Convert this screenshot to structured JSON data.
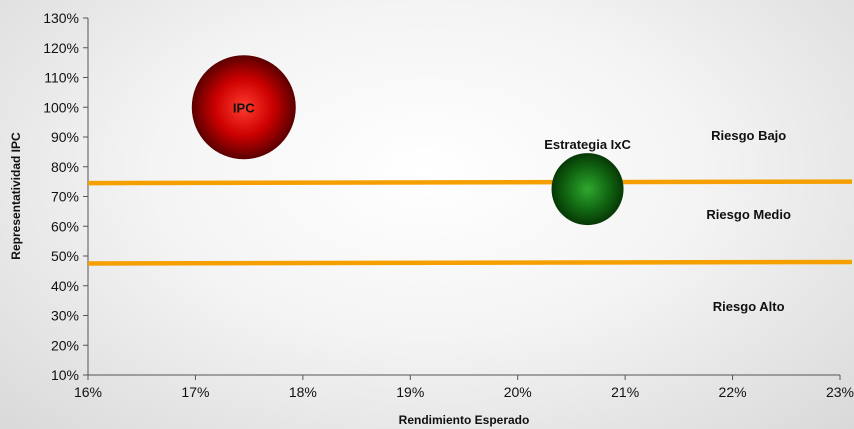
{
  "chart_data": {
    "type": "scatter",
    "xlabel": "Rendimiento Esperado",
    "ylabel": "Representatividad IPC",
    "xlim": [
      0.16,
      0.23
    ],
    "ylim": [
      0.1,
      1.3
    ],
    "x_ticks": [
      "16%",
      "17%",
      "18%",
      "19%",
      "20%",
      "21%",
      "22%",
      "23%"
    ],
    "y_ticks": [
      "10%",
      "20%",
      "30%",
      "40%",
      "50%",
      "60%",
      "70%",
      "80%",
      "90%",
      "100%",
      "110%",
      "120%",
      "130%"
    ],
    "points": [
      {
        "label": "IPC",
        "x": 0.1745,
        "y": 1.0,
        "size": "large",
        "color": "#cc0000"
      },
      {
        "label": "Estrategia IxC",
        "x": 0.2065,
        "y": 0.725,
        "size": "small",
        "color": "#1a7a1a"
      }
    ],
    "threshold_lines": [
      {
        "y_start": 0.745,
        "y_end": 0.75,
        "color": "#f5a000"
      },
      {
        "y_start": 0.475,
        "y_end": 0.48,
        "color": "#f5a000"
      }
    ],
    "zone_labels": [
      {
        "text": "Riesgo Bajo",
        "x": 0.2215,
        "y": 0.89
      },
      {
        "text": "Riesgo Medio",
        "x": 0.2215,
        "y": 0.625
      },
      {
        "text": "Riesgo Alto",
        "x": 0.2215,
        "y": 0.315
      }
    ],
    "grid": false,
    "legend": "none"
  }
}
